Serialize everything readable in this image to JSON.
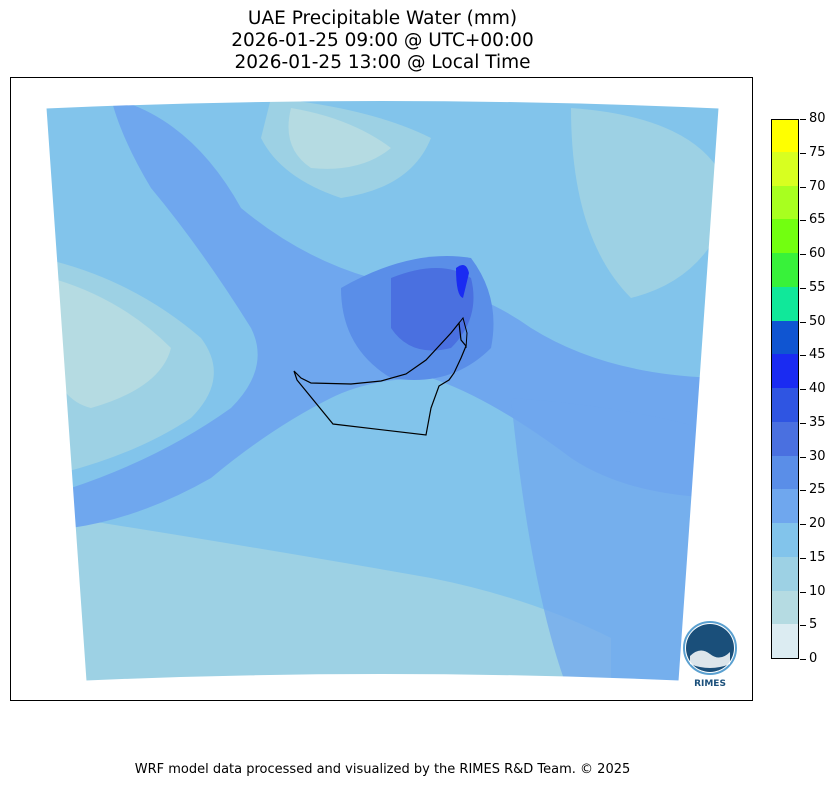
{
  "title": {
    "line1": "UAE Precipitable Water (mm)",
    "line2": "2026-01-25 09:00 @ UTC+00:00",
    "line3": "2026-01-25 13:00 @ Local Time"
  },
  "colorbar": {
    "ticks": [
      "0",
      "5",
      "10",
      "15",
      "20",
      "25",
      "30",
      "35",
      "40",
      "45",
      "50",
      "55",
      "60",
      "65",
      "70",
      "75",
      "80"
    ],
    "colors": [
      "#dcecf2",
      "#b5dbe2",
      "#9dd1e4",
      "#82c4eb",
      "#6fa7ee",
      "#5a8ee8",
      "#4a70e0",
      "#2f55e2",
      "#1a2bf2",
      "#0f55d2",
      "#10e89a",
      "#38f23a",
      "#72ff10",
      "#a8ff1f",
      "#d8ff20",
      "#ffff00",
      "#ffd000"
    ],
    "vmin": 0,
    "vmax": 80
  },
  "logo": {
    "text": "RIMES"
  },
  "footer": "WRF model data processed and visualized by the RIMES R&D Team. © 2025",
  "colors": {
    "frame": "#000000",
    "background": "#ffffff"
  }
}
